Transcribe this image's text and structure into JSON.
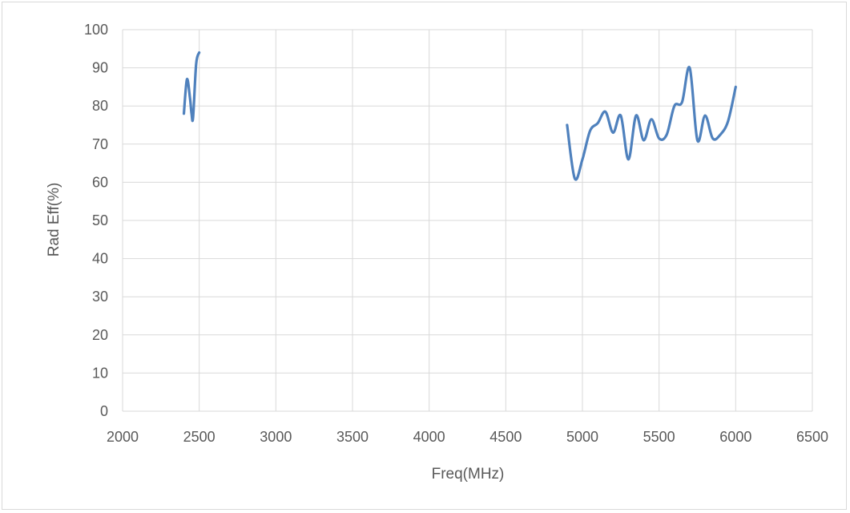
{
  "chart_data": {
    "type": "line",
    "title": "",
    "xlabel": "Freq(MHz)",
    "ylabel": "Rad Eff(%)",
    "xlim": [
      2000,
      6500
    ],
    "ylim": [
      0,
      100
    ],
    "xticks": [
      2000,
      2500,
      3000,
      3500,
      4000,
      4500,
      5000,
      5500,
      6000,
      6500
    ],
    "yticks": [
      0,
      10,
      20,
      30,
      40,
      50,
      60,
      70,
      80,
      90,
      100
    ],
    "grid": true,
    "legend": "none",
    "colors": {
      "series": "#4f81bd",
      "grid": "#d9d9d9",
      "text": "#595959",
      "border": "#d9d9d9"
    },
    "series": [
      {
        "segments": [
          {
            "x": [
              2400,
              2420,
              2440,
              2450,
              2460,
              2480,
              2500
            ],
            "y": [
              78,
              87,
              82,
              78,
              77,
              91,
              94
            ]
          },
          {
            "x": [
              4900,
              4950,
              5000,
              5050,
              5100,
              5150,
              5200,
              5250,
              5300,
              5350,
              5400,
              5450,
              5500,
              5550,
              5600,
              5650,
              5700,
              5750,
              5800,
              5850,
              5900,
              5950,
              6000
            ],
            "y": [
              75,
              61,
              66,
              73.5,
              75.5,
              78.5,
              73,
              77.5,
              66,
              77.5,
              71,
              76.5,
              71.5,
              72.5,
              80,
              81,
              90,
              71,
              77.5,
              71.5,
              72.5,
              76,
              85
            ]
          }
        ]
      }
    ]
  }
}
